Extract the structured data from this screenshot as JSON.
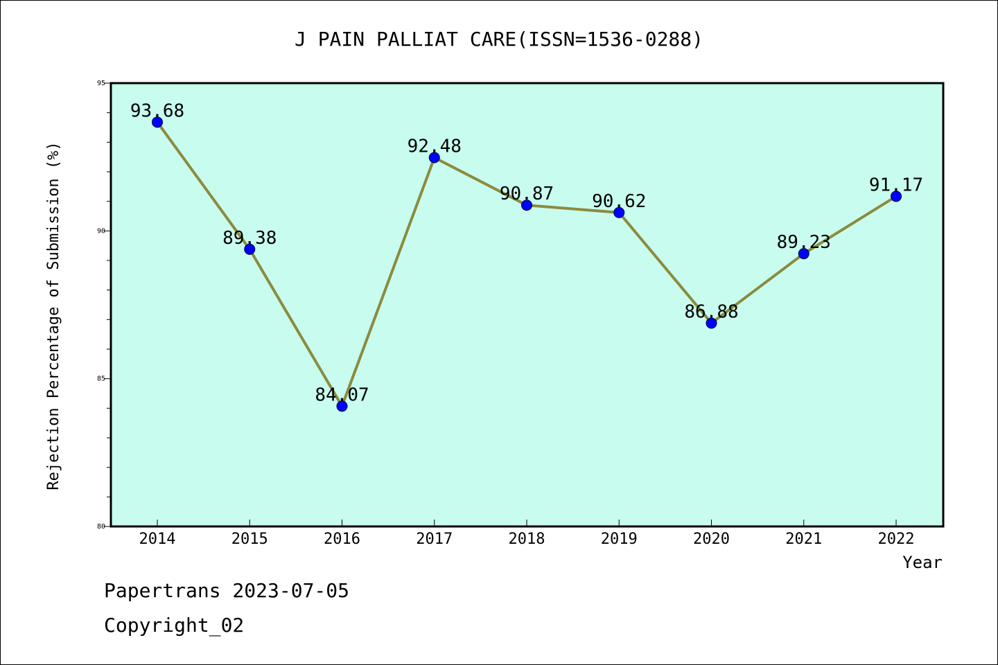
{
  "footer": {
    "line1": "Papertrans 2023-07-05",
    "line2": "Copyright_02"
  },
  "chart_data": {
    "type": "line",
    "title": "J PAIN PALLIAT CARE(ISSN=1536-0288)",
    "xlabel": "Year",
    "ylabel": "Rejection Percentage of Submission (%)",
    "categories": [
      "2014",
      "2015",
      "2016",
      "2017",
      "2018",
      "2019",
      "2020",
      "2021",
      "2022"
    ],
    "values": [
      93.68,
      89.38,
      84.07,
      92.48,
      90.87,
      90.62,
      86.88,
      89.23,
      91.17
    ],
    "data_labels": [
      "93.68",
      "89.38",
      "84.07",
      "92.48",
      "90.87",
      "90.62",
      "86.88",
      "89.23",
      "91.17"
    ],
    "ylim": [
      80,
      95
    ],
    "yticks": [
      "80",
      "85",
      "90",
      "95"
    ],
    "grid": false,
    "colors": {
      "plot_background": "#c8fcee",
      "line": "#8b8b3e",
      "marker": "#0000ff"
    }
  }
}
